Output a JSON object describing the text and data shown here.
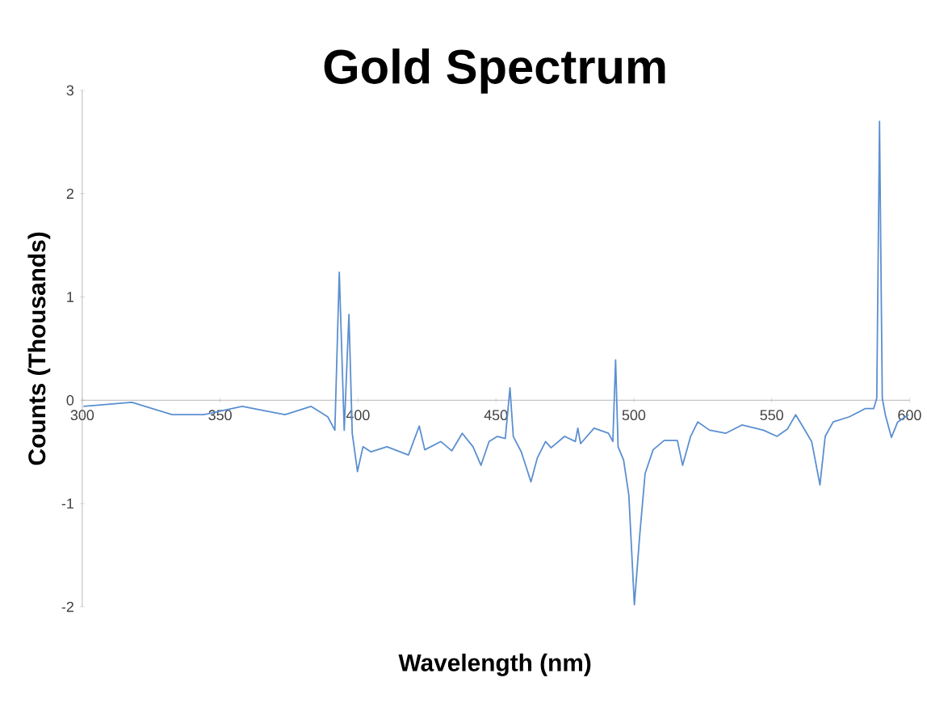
{
  "chart_data": {
    "type": "line",
    "title": "Gold Spectrum",
    "xlabel": "Wavelength (nm)",
    "ylabel": "Counts (Thousands)",
    "xlim": [
      300,
      600
    ],
    "xticks": [
      300,
      350,
      400,
      450,
      500,
      550,
      600
    ],
    "ylim": [
      -2,
      3
    ],
    "yticks": [
      -2,
      -1,
      0,
      1,
      2,
      3
    ],
    "marker": "none",
    "series": [
      {
        "color": "#5b8fd0",
        "x": [
          300.4,
          318,
          332.6,
          344,
          358,
          373.5,
          383,
          389,
          391.6,
          393.2,
          395,
          396.7,
          397.9,
          399.8,
          401.8,
          404.7,
          410.5,
          418.3,
          422.2,
          424.2,
          430,
          434,
          437.8,
          441.7,
          444.6,
          447.5,
          450.5,
          453.4,
          455.1,
          456.3,
          459.2,
          462.7,
          465,
          468,
          470,
          474.9,
          478.8,
          479.7,
          480.7,
          485.6,
          490.8,
          492.4,
          493.4,
          494.3,
          496.3,
          498.2,
          500.2,
          502.2,
          504.1,
          507,
          511,
          515.8,
          517.7,
          520.6,
          523.2,
          527.5,
          533.3,
          539.2,
          547,
          551.9,
          555.7,
          558.7,
          561.6,
          564.5,
          567.5,
          569.4,
          572.3,
          578.2,
          584,
          587,
          588.1,
          589.1,
          590.1,
          591.2,
          593.4,
          595.7,
          599.6
        ],
        "values": [
          -0.06,
          -0.02,
          -0.14,
          -0.14,
          -0.06,
          -0.14,
          -0.06,
          -0.16,
          -0.29,
          1.24,
          -0.29,
          0.83,
          -0.32,
          -0.69,
          -0.45,
          -0.5,
          -0.45,
          -0.53,
          -0.25,
          -0.48,
          -0.4,
          -0.49,
          -0.32,
          -0.45,
          -0.63,
          -0.4,
          -0.35,
          -0.37,
          0.12,
          -0.35,
          -0.5,
          -0.79,
          -0.56,
          -0.4,
          -0.46,
          -0.35,
          -0.4,
          -0.27,
          -0.42,
          -0.27,
          -0.32,
          -0.4,
          0.39,
          -0.45,
          -0.58,
          -0.92,
          -1.98,
          -1.29,
          -0.71,
          -0.48,
          -0.39,
          -0.39,
          -0.63,
          -0.35,
          -0.21,
          -0.29,
          -0.32,
          -0.24,
          -0.29,
          -0.35,
          -0.28,
          -0.14,
          -0.27,
          -0.4,
          -0.82,
          -0.35,
          -0.21,
          -0.16,
          -0.08,
          -0.08,
          0.02,
          2.7,
          0.02,
          -0.14,
          -0.36,
          -0.21,
          -0.14
        ]
      }
    ]
  }
}
